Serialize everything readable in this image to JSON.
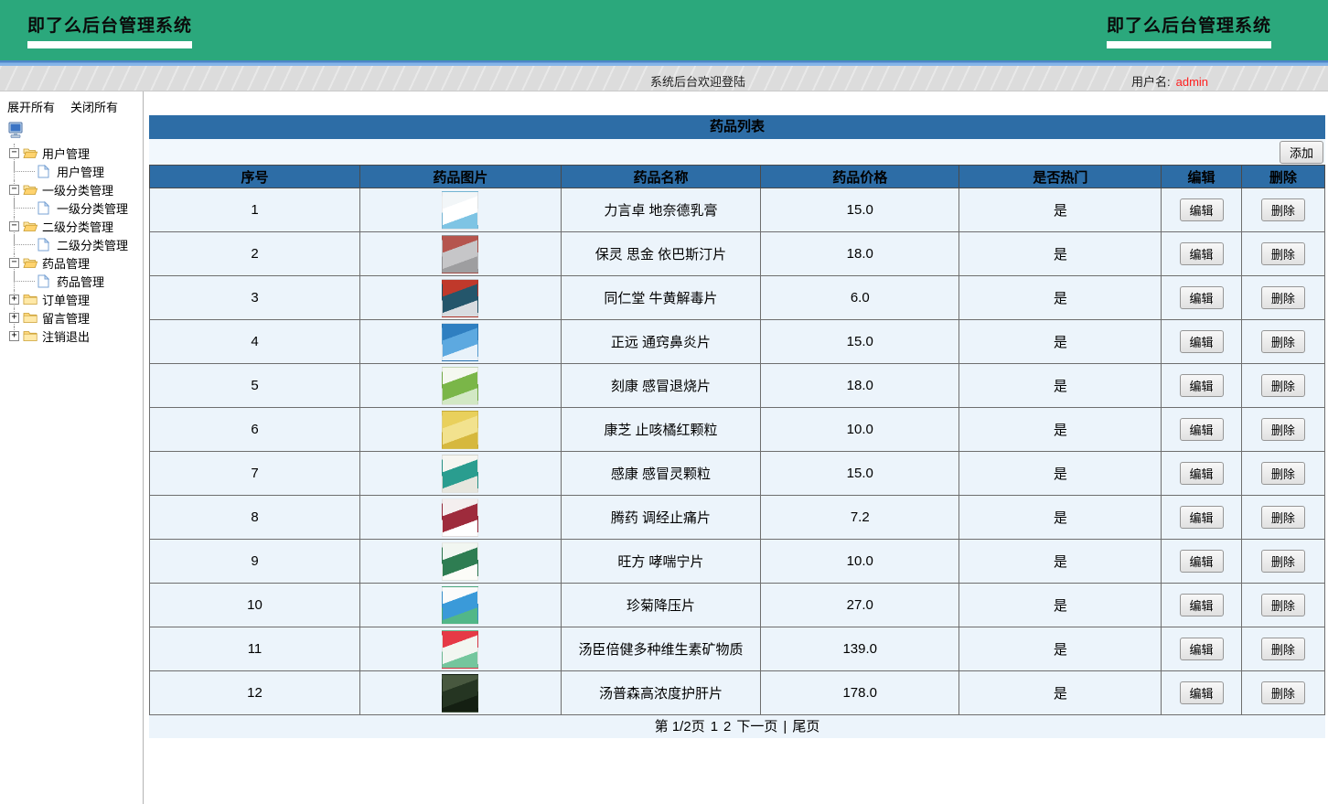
{
  "app": {
    "title_left": "即了么后台管理系统",
    "title_right": "即了么后台管理系统",
    "welcome_text": "系统后台欢迎登陆",
    "username_label": "用户名:",
    "username_value": "admin"
  },
  "sidebar": {
    "expand_all_label": "展开所有",
    "collapse_all_label": "关闭所有",
    "tree": [
      {
        "label": "用户管理",
        "expanded": true,
        "children": [
          "用户管理"
        ]
      },
      {
        "label": "一级分类管理",
        "expanded": true,
        "children": [
          "一级分类管理"
        ]
      },
      {
        "label": "二级分类管理",
        "expanded": true,
        "children": [
          "二级分类管理"
        ]
      },
      {
        "label": "药品管理",
        "expanded": true,
        "children": [
          "药品管理"
        ]
      },
      {
        "label": "订单管理",
        "expanded": false,
        "children": []
      },
      {
        "label": "留言管理",
        "expanded": false,
        "children": []
      },
      {
        "label": "注销退出",
        "expanded": false,
        "children": []
      }
    ]
  },
  "table": {
    "title": "药品列表",
    "add_button_label": "添加",
    "columns": [
      "序号",
      "药品图片",
      "药品名称",
      "药品价格",
      "是否热门",
      "编辑",
      "删除"
    ],
    "edit_button_label": "编辑",
    "delete_button_label": "删除",
    "rows": [
      {
        "no": "1",
        "name": "力言卓 地奈德乳膏",
        "price": "15.0",
        "hot": "是",
        "img_colors": [
          "#f2f6f8",
          "#ffffff",
          "#7ec4e4"
        ]
      },
      {
        "no": "2",
        "name": "保灵 思金 依巴斯汀片",
        "price": "18.0",
        "hot": "是",
        "img_colors": [
          "#b5554e",
          "#c6c6c8",
          "#9e9ea0"
        ]
      },
      {
        "no": "3",
        "name": "同仁堂 牛黄解毒片",
        "price": "6.0",
        "hot": "是",
        "img_colors": [
          "#c0392b",
          "#24566b",
          "#d8dce0"
        ]
      },
      {
        "no": "4",
        "name": "正远 通窍鼻炎片",
        "price": "15.0",
        "hot": "是",
        "img_colors": [
          "#2f7fc1",
          "#5da9e0",
          "#e8f2fa"
        ]
      },
      {
        "no": "5",
        "name": "刻康 感冒退烧片",
        "price": "18.0",
        "hot": "是",
        "img_colors": [
          "#f4f8f0",
          "#7ab648",
          "#d2e8c4"
        ]
      },
      {
        "no": "6",
        "name": "康芝 止咳橘红颗粒",
        "price": "10.0",
        "hot": "是",
        "img_colors": [
          "#e9d05c",
          "#f2e28e",
          "#d6b83e"
        ]
      },
      {
        "no": "7",
        "name": "感康 感冒灵颗粒",
        "price": "15.0",
        "hot": "是",
        "img_colors": [
          "#f6f6f1",
          "#2a9d8f",
          "#e6e6de"
        ]
      },
      {
        "no": "8",
        "name": "腾药 调经止痛片",
        "price": "7.2",
        "hot": "是",
        "img_colors": [
          "#f4efef",
          "#9e2b3c",
          "#ffffff"
        ]
      },
      {
        "no": "9",
        "name": "旺方 哮喘宁片",
        "price": "10.0",
        "hot": "是",
        "img_colors": [
          "#f1f6f1",
          "#2e7d52",
          "#fcfcf8"
        ]
      },
      {
        "no": "10",
        "name": "珍菊降压片",
        "price": "27.0",
        "hot": "是",
        "img_colors": [
          "#fbfbfb",
          "#3a9ad9",
          "#52b788"
        ]
      },
      {
        "no": "11",
        "name": "汤臣倍健多种维生素矿物质",
        "price": "139.0",
        "hot": "是",
        "img_colors": [
          "#e63946",
          "#f2f6f1",
          "#74c69d"
        ]
      },
      {
        "no": "12",
        "name": "汤普森高浓度护肝片",
        "price": "178.0",
        "hot": "是",
        "img_colors": [
          "#48583f",
          "#253522",
          "#141f12"
        ]
      }
    ],
    "pagination": [
      {
        "text": "第 1/2页",
        "link": false
      },
      {
        "text": "1",
        "link": true
      },
      {
        "text": "2",
        "link": true
      },
      {
        "text": "下一页",
        "link": true
      },
      {
        "text": "|",
        "link": false
      },
      {
        "text": "尾页",
        "link": true
      }
    ]
  },
  "colors": {
    "header_green": "#2BA87C",
    "strip_blue_top": "#4C86C6",
    "strip_blue": "#85B4E8",
    "bar_gray": "#DCDCDC",
    "username_red": "#FF1F1F",
    "table_blue": "#2D6DA6",
    "row_bg": "#ECF4FB",
    "add_row_bg": "#F2F8FD"
  }
}
